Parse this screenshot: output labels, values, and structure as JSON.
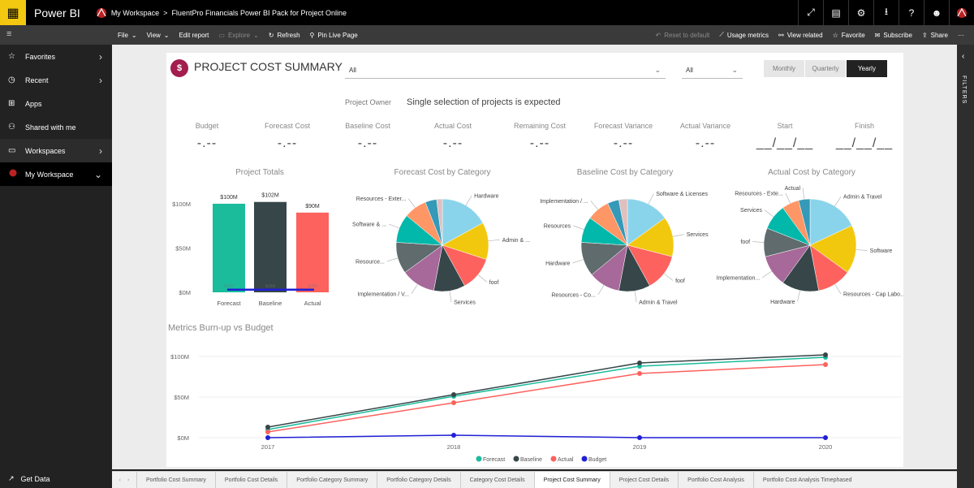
{
  "topbar": {
    "app_name": "Power BI",
    "workspace": "My Workspace",
    "separator": ">",
    "report": "FluentPro Financials Power BI Pack for Project Online"
  },
  "toolbar": {
    "file": "File",
    "view": "View",
    "edit_report": "Edit report",
    "explore": "Explore",
    "refresh": "Refresh",
    "pin_live": "Pin Live Page",
    "reset": "Reset to default",
    "usage": "Usage metrics",
    "view_related": "View related",
    "favorite": "Favorite",
    "subscribe": "Subscribe",
    "share": "Share",
    "more": "···"
  },
  "sidebar": {
    "items": [
      {
        "label": "Favorites"
      },
      {
        "label": "Recent"
      },
      {
        "label": "Apps"
      },
      {
        "label": "Shared with me"
      },
      {
        "label": "Workspaces"
      },
      {
        "label": "My Workspace"
      }
    ],
    "get_data": "Get Data"
  },
  "filters_label": "FILTERS",
  "header": {
    "title": "PROJECT COST SUMMARY",
    "title_icon": "$",
    "slicer1": "All",
    "slicer2": "All",
    "period_tabs": [
      "Monthly",
      "Quarterly",
      "Yearly"
    ],
    "period_selected": "Yearly"
  },
  "owner": {
    "label": "Project Owner",
    "message": "Single selection of projects is expected"
  },
  "kpis": [
    {
      "label": "Budget",
      "value": "-.--"
    },
    {
      "label": "Forecast Cost",
      "value": "-.--"
    },
    {
      "label": "Baseline Cost",
      "value": "-.--"
    },
    {
      "label": "Actual Cost",
      "value": "-.--"
    },
    {
      "label": "Remaining Cost",
      "value": "-.--"
    },
    {
      "label": "Forecast Variance",
      "value": "-.--"
    },
    {
      "label": "Actual Variance",
      "value": "-.--"
    },
    {
      "label": "Start",
      "value": "__/__/__"
    },
    {
      "label": "Finish",
      "value": "__/__/__"
    }
  ],
  "colors": {
    "forecast": "#1abc9c",
    "baseline": "#374649",
    "actual": "#fd625e",
    "budget": "#1f1fd6"
  },
  "chart_data": [
    {
      "type": "bar",
      "title": "Project Totals",
      "categories": [
        "Forecast",
        "Baseline",
        "Actual"
      ],
      "values": [
        100,
        102,
        90
      ],
      "data_labels": [
        "$100M",
        "$102M",
        "$90M"
      ],
      "inner_labels": [
        "$0M",
        "$3M",
        "$3M"
      ],
      "budget_line": 3,
      "yticks": [
        "$0M",
        "$50M",
        "$100M"
      ],
      "ylim": [
        0,
        110
      ]
    },
    {
      "type": "pie",
      "title": "Forecast Cost by Category",
      "slices": [
        {
          "label": "Hardware",
          "value": 17
        },
        {
          "label": "Admin & ...",
          "value": 13
        },
        {
          "label": "foof",
          "value": 12
        },
        {
          "label": "Services",
          "value": 11
        },
        {
          "label": "Implementation / V...",
          "value": 12
        },
        {
          "label": "Resource...",
          "value": 11
        },
        {
          "label": "Software & ...",
          "value": 10
        },
        {
          "label": "Resources - Exter...",
          "value": 8
        },
        {
          "label": "",
          "value": 4
        },
        {
          "label": "",
          "value": 2
        }
      ]
    },
    {
      "type": "pie",
      "title": "Baseline Cost by Category",
      "slices": [
        {
          "label": "Software & Licenses",
          "value": 15
        },
        {
          "label": "Services",
          "value": 14
        },
        {
          "label": "foof",
          "value": 13
        },
        {
          "label": "Admin & Travel",
          "value": 11
        },
        {
          "label": "Resources - Co...",
          "value": 11
        },
        {
          "label": "Hardware",
          "value": 12
        },
        {
          "label": "Resources",
          "value": 9
        },
        {
          "label": "Implementation / ...",
          "value": 8
        },
        {
          "label": "",
          "value": 4
        },
        {
          "label": "",
          "value": 3
        }
      ]
    },
    {
      "type": "pie",
      "title": "Actual Cost by Category",
      "slices": [
        {
          "label": "Admin & Travel",
          "value": 18
        },
        {
          "label": "Software",
          "value": 17
        },
        {
          "label": "Resources - Cap Labo...",
          "value": 12
        },
        {
          "label": "Hardware",
          "value": 13
        },
        {
          "label": "Implementation...",
          "value": 11
        },
        {
          "label": "foof",
          "value": 10
        },
        {
          "label": "Services",
          "value": 9
        },
        {
          "label": "Resources - Exte...",
          "value": 6
        },
        {
          "label": "Actual",
          "value": 4
        }
      ]
    },
    {
      "type": "line",
      "title": "Metrics Burn-up vs Budget",
      "x": [
        "2017",
        "2018",
        "2019",
        "2020"
      ],
      "series": [
        {
          "name": "Forecast",
          "values": [
            10,
            51,
            88,
            99
          ]
        },
        {
          "name": "Baseline",
          "values": [
            13,
            53,
            92,
            102
          ]
        },
        {
          "name": "Actual",
          "values": [
            7,
            43,
            79,
            90
          ]
        },
        {
          "name": "Budget",
          "values": [
            0,
            3,
            0,
            0
          ]
        }
      ],
      "yticks": [
        "$0M",
        "$50M",
        "$100M"
      ],
      "ylim": [
        0,
        110
      ]
    }
  ],
  "pie_palette": [
    "#8ad4eb",
    "#f2c80f",
    "#fd625e",
    "#374649",
    "#a66999",
    "#5f6b6d",
    "#01b8aa",
    "#fe9666",
    "#3599b8",
    "#dfbfbf"
  ],
  "tabs": [
    "Portfolio Cost Summary",
    "Portfolio Cost Details",
    "Portfolio Category Summary",
    "Portfolio Category Details",
    "Category Cost Details",
    "Project Cost Summary",
    "Project Cost Details",
    "Portfolio Cost Analysis",
    "Portfolio Cost Analysis Timephased"
  ],
  "tab_selected": "Project Cost Summary"
}
